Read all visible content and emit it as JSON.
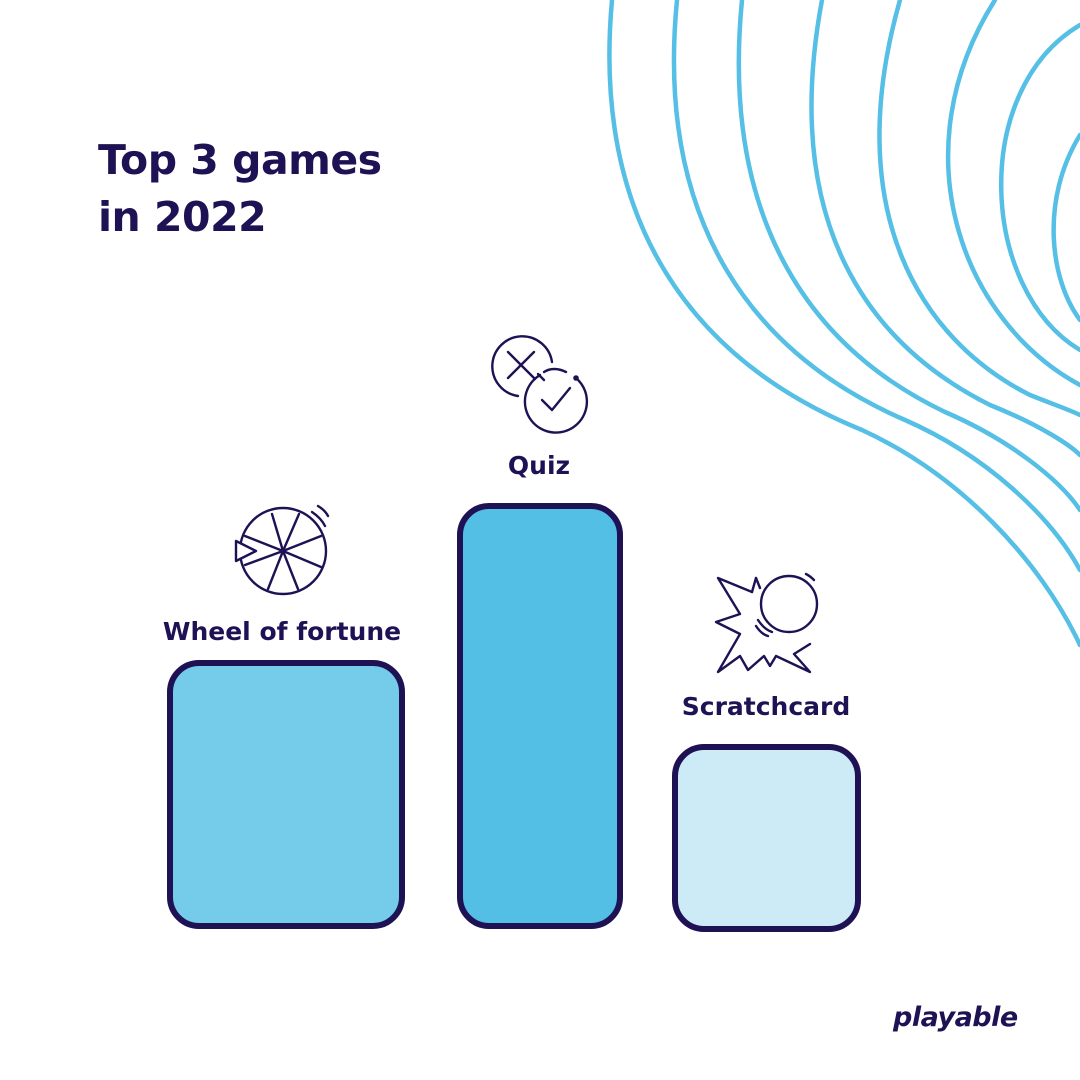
{
  "header": {
    "title_line1": "Top 3 games",
    "title_line2": "in 2022"
  },
  "brand": {
    "logo_text": "playable"
  },
  "colors": {
    "navy": "#1e1254",
    "wave": "#55bfe5",
    "bar_wheel": "#74cbea",
    "bar_quiz": "#54bfe5",
    "bar_scratch": "#cdebf7"
  },
  "chart_data": {
    "type": "bar",
    "title": "Top 3 games in 2022",
    "categories": [
      "Wheel of fortune",
      "Quiz",
      "Scratchcard"
    ],
    "series": [
      {
        "values": [
          2,
          3,
          1
        ]
      }
    ],
    "icons": [
      "wheel-of-fortune-icon",
      "quiz-icon",
      "scratchcard-icon"
    ],
    "xlabel": "",
    "ylabel": "",
    "grid": false,
    "legend": "none"
  }
}
